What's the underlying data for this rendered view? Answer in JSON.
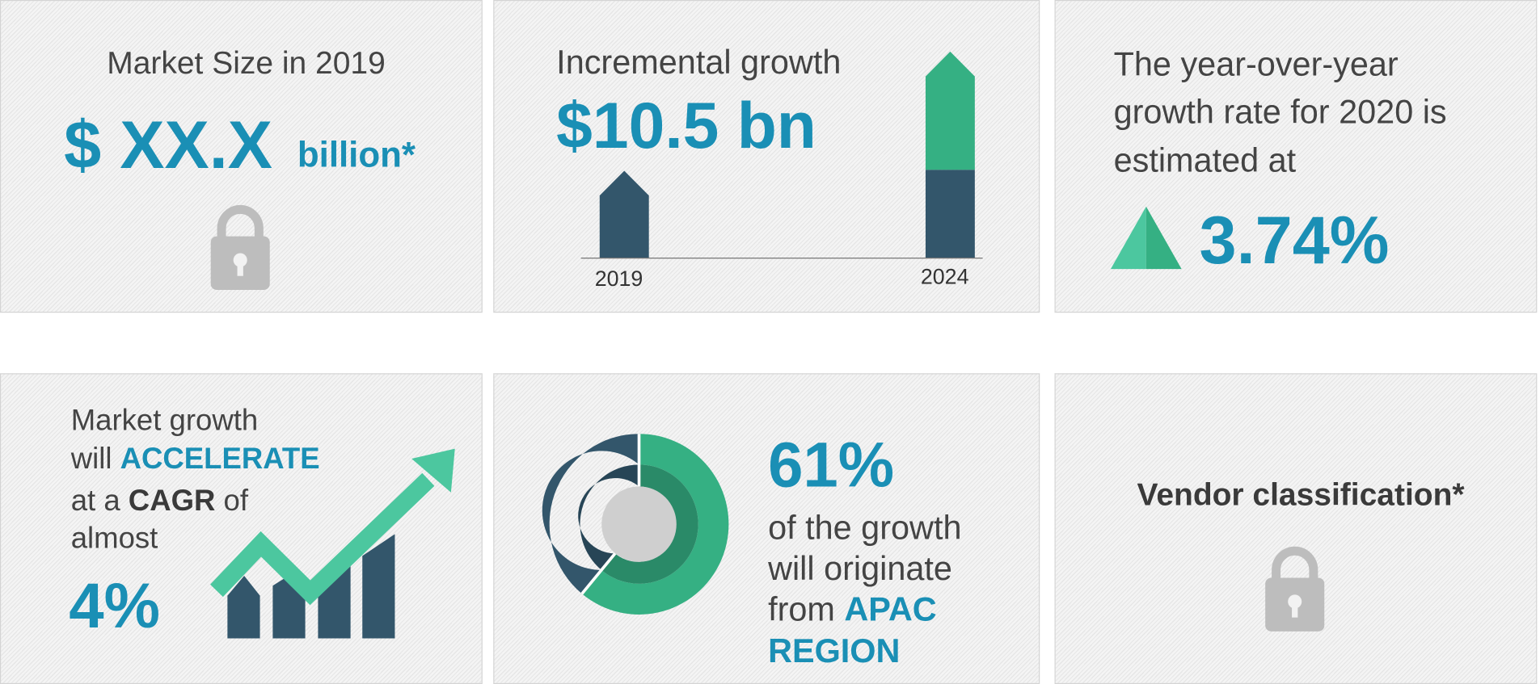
{
  "cards": [
    {
      "title": "Market Size in 2019",
      "value": "$ XX.X",
      "unit": "billion*"
    },
    {
      "title": "Incremental growth",
      "value": "$10.5 bn",
      "labels": [
        "2019",
        "2024"
      ]
    },
    {
      "lines": [
        "The year-over-year",
        "growth rate for 2020 is",
        "estimated at"
      ],
      "value": "3.74%"
    },
    {
      "lines": [
        [
          "Market growth"
        ],
        [
          "will ",
          "ACCELERATE"
        ],
        [
          "at a ",
          "CAGR",
          " of"
        ],
        [
          "almost"
        ]
      ],
      "value": "4%"
    },
    {
      "value": "61%",
      "lines": [
        [
          "of the growth"
        ],
        [
          "will originate"
        ],
        [
          "from ",
          "APAC"
        ],
        [
          "REGION"
        ]
      ]
    },
    {
      "title": "Vendor classification*"
    }
  ]
}
